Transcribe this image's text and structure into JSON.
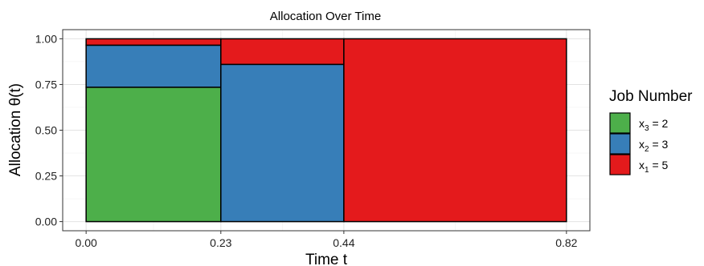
{
  "chart_data": {
    "type": "bar",
    "title": "Allocation Over Time",
    "xlabel": "Time t",
    "ylabel": "Allocation θ(t)",
    "xlim": [
      -0.04,
      0.86
    ],
    "ylim": [
      -0.05,
      1.05
    ],
    "x_ticks": [
      0.0,
      0.23,
      0.44,
      0.82
    ],
    "x_tick_labels": [
      "0.00",
      "0.23",
      "0.44",
      "0.82"
    ],
    "y_ticks": [
      0.0,
      0.25,
      0.5,
      0.75,
      1.0
    ],
    "y_tick_labels": [
      "0.00",
      "0.25",
      "0.50",
      "0.75",
      "1.00"
    ],
    "grid": true,
    "legend_position": "right",
    "intervals": [
      {
        "start": 0.0,
        "end": 0.23
      },
      {
        "start": 0.23,
        "end": 0.44
      },
      {
        "start": 0.44,
        "end": 0.82
      }
    ],
    "series": [
      {
        "name": "x3 = 2",
        "job": "3",
        "value": "2",
        "color": "#4DAF4A",
        "values": [
          0.735,
          0.0,
          0.0
        ]
      },
      {
        "name": "x2 = 3",
        "job": "2",
        "value": "3",
        "color": "#377EB8",
        "values": [
          0.23,
          0.86,
          0.0
        ]
      },
      {
        "name": "x1 = 5",
        "job": "1",
        "value": "5",
        "color": "#E41A1C",
        "values": [
          0.035,
          0.14,
          1.0
        ]
      }
    ],
    "legend": {
      "title": "Job Number",
      "entries": [
        {
          "prefix": "x",
          "sub": "3",
          "suffix": " = 2",
          "color": "#4DAF4A"
        },
        {
          "prefix": "x",
          "sub": "2",
          "suffix": " = 3",
          "color": "#377EB8"
        },
        {
          "prefix": "x",
          "sub": "1",
          "suffix": " = 5",
          "color": "#E41A1C"
        }
      ]
    }
  }
}
